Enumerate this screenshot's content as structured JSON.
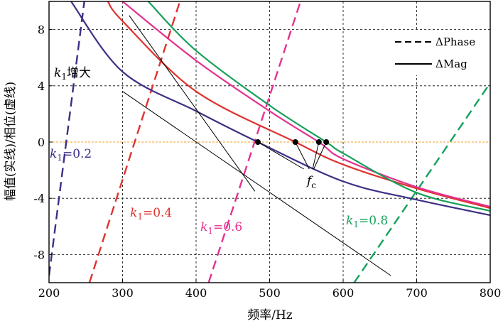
{
  "chart_data": {
    "type": "line",
    "xlabel": "频率/Hz",
    "ylabel": "幅值(实线)/相位(虚线)",
    "xlim": [
      200,
      800
    ],
    "ylim": [
      -10,
      10
    ],
    "xticks": [
      200,
      300,
      400,
      500,
      600,
      700,
      800
    ],
    "yticks": [
      8,
      4,
      0,
      -4,
      -8
    ],
    "grid": true,
    "legend_position": "top-right",
    "legend": [
      {
        "label": "ΔPhase",
        "style": "dashed"
      },
      {
        "label": "ΔMag",
        "style": "solid"
      }
    ],
    "series": [
      {
        "k_value": "0.2",
        "color": "#3d2f86",
        "mag": {
          "x": [
            230,
            300,
            400,
            484,
            600,
            700,
            800
          ],
          "y": [
            10,
            5.0,
            2.2,
            0,
            -2.8,
            -4.1,
            -5.2
          ]
        },
        "phase": {
          "x": [
            200,
            248
          ],
          "y": [
            -9.5,
            10
          ]
        }
      },
      {
        "k_value": "0.4",
        "color": "#e0322e",
        "mag": {
          "x": [
            280,
            300,
            400,
            535,
            600,
            700,
            800
          ],
          "y": [
            10,
            8.6,
            3.6,
            0,
            -1.6,
            -3.3,
            -4.7
          ]
        },
        "phase": {
          "x": [
            255,
            378
          ],
          "y": [
            -10,
            10
          ]
        }
      },
      {
        "k_value": "0.6",
        "color": "#e4318f",
        "mag": {
          "x": [
            300,
            400,
            500,
            567,
            600,
            700,
            800
          ],
          "y": [
            10,
            5.8,
            2.2,
            0,
            -1.2,
            -3.2,
            -4.6
          ]
        },
        "phase": {
          "x": [
            417,
            542
          ],
          "y": [
            -10,
            10
          ]
        }
      },
      {
        "k_value": "0.8",
        "color": "#16a05a",
        "mag": {
          "x": [
            335,
            400,
            500,
            577,
            600,
            700,
            800
          ],
          "y": [
            10,
            6.5,
            2.6,
            0,
            -0.8,
            -3.6,
            -4.9
          ]
        },
        "phase": {
          "x": [
            615,
            800
          ],
          "y": [
            -10,
            4.2
          ]
        }
      }
    ],
    "zero_line_color": "#f0a020",
    "crossing_x": [
      484,
      535,
      567,
      577
    ],
    "annotations": {
      "k_increase": {
        "k": "k",
        "sub": "1",
        "text": "增大"
      },
      "fc": {
        "f": "f",
        "sub": "c"
      },
      "k_labels": [
        {
          "k": "k",
          "sub": "1",
          "text": "=0.2"
        },
        {
          "k": "k",
          "sub": "1",
          "text": "=0.4"
        },
        {
          "k": "k",
          "sub": "1",
          "text": "=0.6"
        },
        {
          "k": "k",
          "sub": "1",
          "text": "=0.8"
        }
      ]
    },
    "ref_lines": [
      {
        "x": [
          309,
          480
        ],
        "y": [
          9.0,
          -3.5
        ]
      },
      {
        "x": [
          300,
          665
        ],
        "y": [
          3.6,
          -9.5
        ]
      }
    ]
  }
}
